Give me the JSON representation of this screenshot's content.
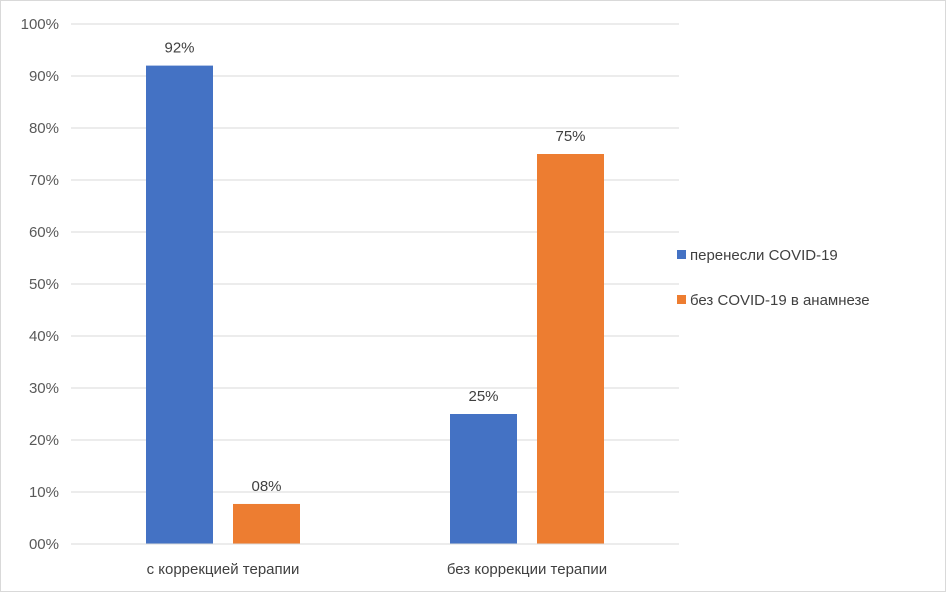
{
  "chart_data": {
    "type": "bar",
    "categories": [
      "с коррекцией терапии",
      "без коррекции терапии"
    ],
    "series": [
      {
        "name": "перенесли COVID-19",
        "color": "#4472C4",
        "values": [
          0.92,
          0.25
        ],
        "labels": [
          "92%",
          "25%"
        ]
      },
      {
        "name": "без COVID-19 в анамнезе",
        "color": "#ED7D31",
        "values": [
          0.077,
          0.75
        ],
        "labels": [
          "08%",
          "75%"
        ]
      }
    ],
    "ylim": [
      0,
      1
    ],
    "yticks": [
      0,
      0.1,
      0.2,
      0.3,
      0.4,
      0.5,
      0.6,
      0.7,
      0.8,
      0.9,
      1.0
    ],
    "ytick_labels": [
      "00%",
      "10%",
      "20%",
      "30%",
      "40%",
      "50%",
      "60%",
      "70%",
      "80%",
      "90%",
      "100%"
    ],
    "grid": true,
    "legend_position": "right"
  }
}
